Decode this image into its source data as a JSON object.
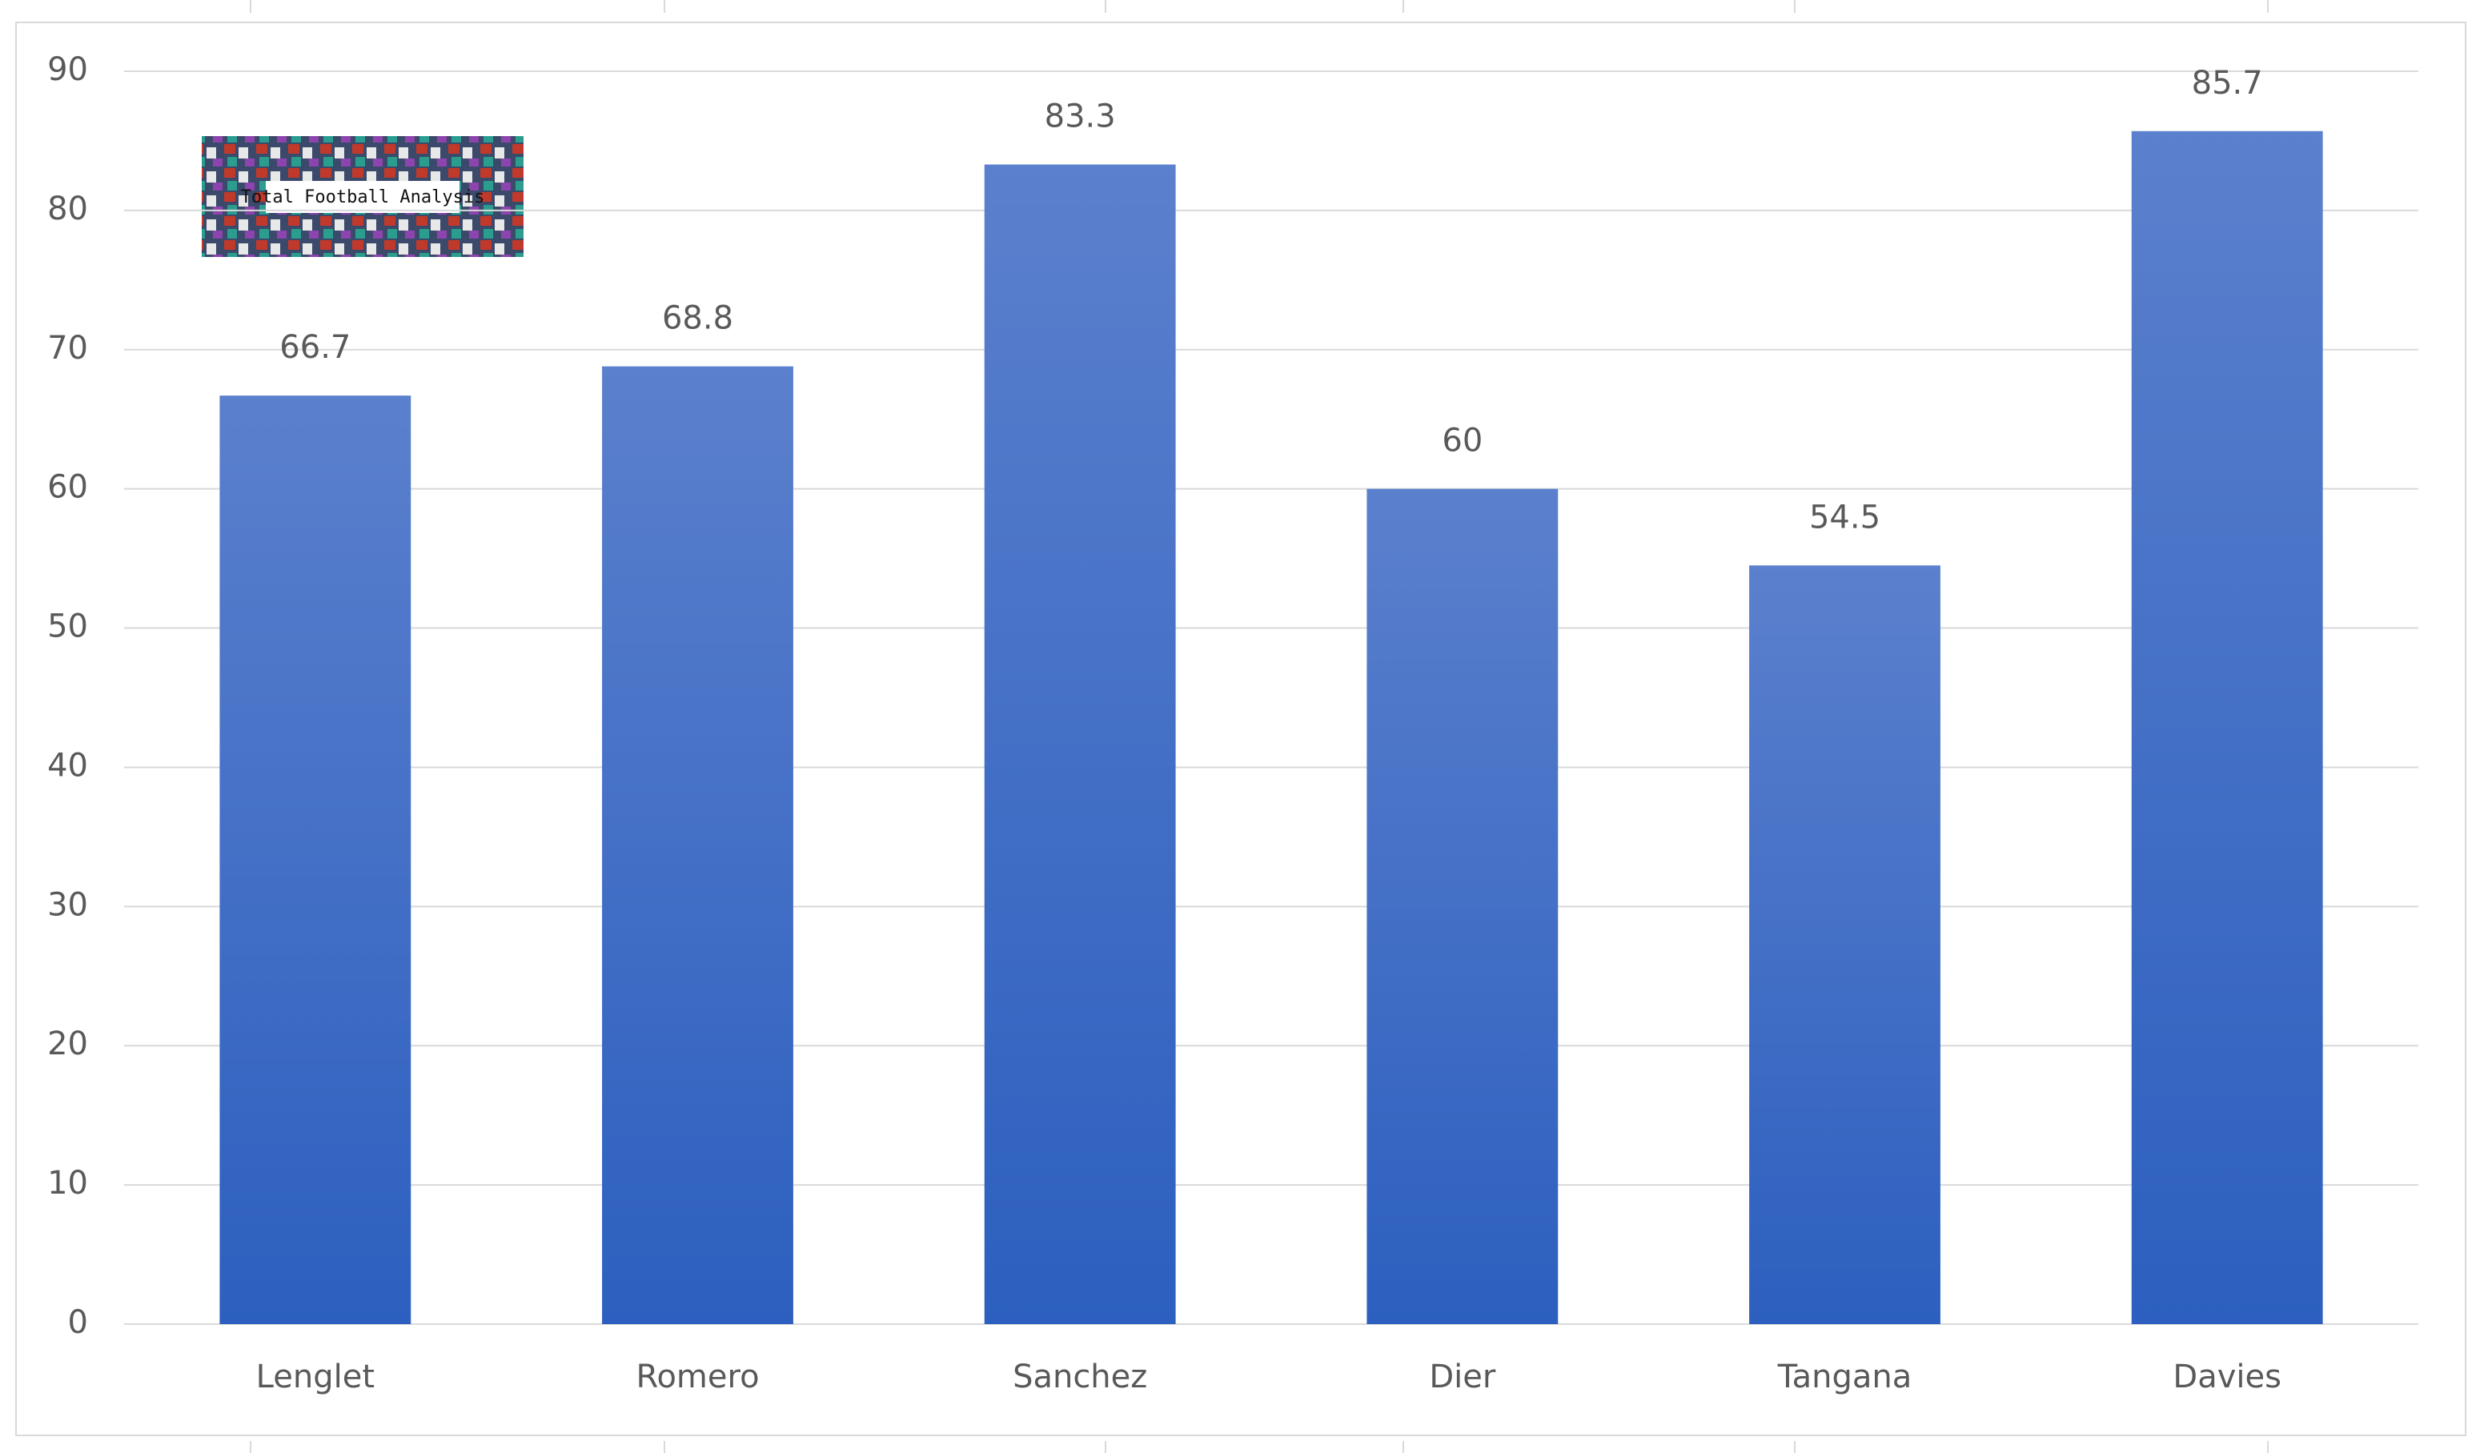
{
  "chart_data": {
    "type": "bar",
    "categories": [
      "Lenglet",
      "Romero",
      "Sanchez",
      "Dier",
      "Tangana",
      "Davies"
    ],
    "values": [
      66.7,
      68.8,
      83.3,
      60,
      54.5,
      85.7
    ],
    "color": "#4472c4",
    "ylim": [
      0,
      90
    ],
    "yticks": [
      0,
      10,
      20,
      30,
      40,
      50,
      60,
      70,
      80,
      90
    ],
    "grid": true,
    "logo_text": "Total Football Analysis"
  }
}
